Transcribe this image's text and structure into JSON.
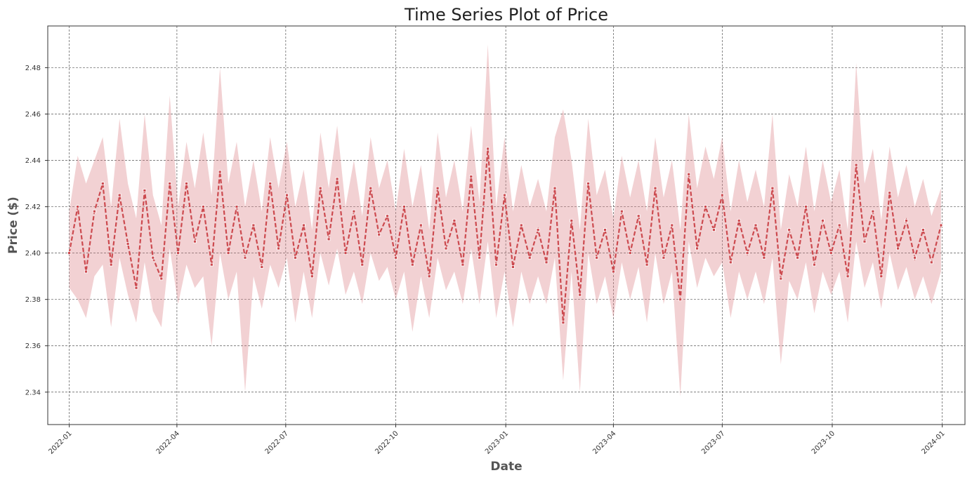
{
  "chart_data": {
    "type": "line",
    "title": "Time Series Plot of Price",
    "xlabel": "Date",
    "ylabel": "Price ($)",
    "x_range": [
      "2022-01-01",
      "2024-01-01"
    ],
    "ylim": [
      2.326,
      2.498
    ],
    "x_ticks": [
      "2022-01",
      "2022-04",
      "2022-07",
      "2022-10",
      "2023-01",
      "2023-04",
      "2023-07",
      "2023-10",
      "2024-01"
    ],
    "y_ticks": [
      "2.34",
      "2.36",
      "2.38",
      "2.40",
      "2.42",
      "2.44",
      "2.46",
      "2.48"
    ],
    "grid": true,
    "legend": "none",
    "colors": {
      "line": "#cc4a4f",
      "band": "#d97a80",
      "marker_edge": "#ffffff",
      "grid": "#555555"
    },
    "series": [
      {
        "values": [
          {
            "x": "2022-01-01",
            "y": 2.4
          },
          {
            "x": "2022-01-08",
            "y": 2.42
          },
          {
            "x": "2022-01-15",
            "y": 2.392
          },
          {
            "x": "2022-01-22",
            "y": 2.418
          },
          {
            "x": "2022-01-29",
            "y": 2.43
          },
          {
            "x": "2022-02-05",
            "y": 2.395
          },
          {
            "x": "2022-02-12",
            "y": 2.425
          },
          {
            "x": "2022-02-19",
            "y": 2.404
          },
          {
            "x": "2022-02-26",
            "y": 2.385
          },
          {
            "x": "2022-03-05",
            "y": 2.427
          },
          {
            "x": "2022-03-12",
            "y": 2.398
          },
          {
            "x": "2022-03-19",
            "y": 2.389
          },
          {
            "x": "2022-03-26",
            "y": 2.43
          },
          {
            "x": "2022-04-02",
            "y": 2.4
          },
          {
            "x": "2022-04-09",
            "y": 2.43
          },
          {
            "x": "2022-04-16",
            "y": 2.405
          },
          {
            "x": "2022-04-23",
            "y": 2.42
          },
          {
            "x": "2022-04-30",
            "y": 2.395
          },
          {
            "x": "2022-05-07",
            "y": 2.435
          },
          {
            "x": "2022-05-14",
            "y": 2.4
          },
          {
            "x": "2022-05-21",
            "y": 2.42
          },
          {
            "x": "2022-05-28",
            "y": 2.398
          },
          {
            "x": "2022-06-04",
            "y": 2.412
          },
          {
            "x": "2022-06-11",
            "y": 2.394
          },
          {
            "x": "2022-06-18",
            "y": 2.43
          },
          {
            "x": "2022-06-25",
            "y": 2.402
          },
          {
            "x": "2022-07-02",
            "y": 2.425
          },
          {
            "x": "2022-07-09",
            "y": 2.398
          },
          {
            "x": "2022-07-16",
            "y": 2.412
          },
          {
            "x": "2022-07-23",
            "y": 2.39
          },
          {
            "x": "2022-07-30",
            "y": 2.428
          },
          {
            "x": "2022-08-06",
            "y": 2.406
          },
          {
            "x": "2022-08-13",
            "y": 2.432
          },
          {
            "x": "2022-08-20",
            "y": 2.4
          },
          {
            "x": "2022-08-27",
            "y": 2.418
          },
          {
            "x": "2022-09-03",
            "y": 2.395
          },
          {
            "x": "2022-09-10",
            "y": 2.428
          },
          {
            "x": "2022-09-17",
            "y": 2.408
          },
          {
            "x": "2022-09-24",
            "y": 2.416
          },
          {
            "x": "2022-10-01",
            "y": 2.398
          },
          {
            "x": "2022-10-08",
            "y": 2.42
          },
          {
            "x": "2022-10-15",
            "y": 2.395
          },
          {
            "x": "2022-10-22",
            "y": 2.412
          },
          {
            "x": "2022-10-29",
            "y": 2.39
          },
          {
            "x": "2022-11-05",
            "y": 2.428
          },
          {
            "x": "2022-11-12",
            "y": 2.402
          },
          {
            "x": "2022-11-19",
            "y": 2.414
          },
          {
            "x": "2022-11-26",
            "y": 2.395
          },
          {
            "x": "2022-12-03",
            "y": 2.433
          },
          {
            "x": "2022-12-10",
            "y": 2.398
          },
          {
            "x": "2022-12-17",
            "y": 2.445
          },
          {
            "x": "2022-12-24",
            "y": 2.395
          },
          {
            "x": "2022-12-31",
            "y": 2.425
          },
          {
            "x": "2023-01-07",
            "y": 2.394
          },
          {
            "x": "2023-01-14",
            "y": 2.412
          },
          {
            "x": "2023-01-21",
            "y": 2.398
          },
          {
            "x": "2023-01-28",
            "y": 2.41
          },
          {
            "x": "2023-02-04",
            "y": 2.396
          },
          {
            "x": "2023-02-11",
            "y": 2.428
          },
          {
            "x": "2023-02-18",
            "y": 2.37
          },
          {
            "x": "2023-02-25",
            "y": 2.414
          },
          {
            "x": "2023-03-04",
            "y": 2.382
          },
          {
            "x": "2023-03-11",
            "y": 2.43
          },
          {
            "x": "2023-03-18",
            "y": 2.398
          },
          {
            "x": "2023-03-25",
            "y": 2.41
          },
          {
            "x": "2023-04-01",
            "y": 2.392
          },
          {
            "x": "2023-04-08",
            "y": 2.418
          },
          {
            "x": "2023-04-15",
            "y": 2.4
          },
          {
            "x": "2023-04-22",
            "y": 2.416
          },
          {
            "x": "2023-04-29",
            "y": 2.395
          },
          {
            "x": "2023-05-06",
            "y": 2.428
          },
          {
            "x": "2023-05-13",
            "y": 2.398
          },
          {
            "x": "2023-05-20",
            "y": 2.412
          },
          {
            "x": "2023-05-27",
            "y": 2.38
          },
          {
            "x": "2023-06-03",
            "y": 2.434
          },
          {
            "x": "2023-06-10",
            "y": 2.402
          },
          {
            "x": "2023-06-17",
            "y": 2.42
          },
          {
            "x": "2023-06-24",
            "y": 2.41
          },
          {
            "x": "2023-07-01",
            "y": 2.425
          },
          {
            "x": "2023-07-08",
            "y": 2.396
          },
          {
            "x": "2023-07-15",
            "y": 2.414
          },
          {
            "x": "2023-07-22",
            "y": 2.4
          },
          {
            "x": "2023-07-29",
            "y": 2.412
          },
          {
            "x": "2023-08-05",
            "y": 2.398
          },
          {
            "x": "2023-08-12",
            "y": 2.428
          },
          {
            "x": "2023-08-19",
            "y": 2.389
          },
          {
            "x": "2023-08-26",
            "y": 2.41
          },
          {
            "x": "2023-09-02",
            "y": 2.398
          },
          {
            "x": "2023-09-09",
            "y": 2.42
          },
          {
            "x": "2023-09-16",
            "y": 2.395
          },
          {
            "x": "2023-09-23",
            "y": 2.414
          },
          {
            "x": "2023-09-30",
            "y": 2.4
          },
          {
            "x": "2023-10-07",
            "y": 2.412
          },
          {
            "x": "2023-10-14",
            "y": 2.39
          },
          {
            "x": "2023-10-21",
            "y": 2.438
          },
          {
            "x": "2023-10-28",
            "y": 2.405
          },
          {
            "x": "2023-11-04",
            "y": 2.418
          },
          {
            "x": "2023-11-11",
            "y": 2.39
          },
          {
            "x": "2023-11-18",
            "y": 2.426
          },
          {
            "x": "2023-11-25",
            "y": 2.402
          },
          {
            "x": "2023-12-02",
            "y": 2.414
          },
          {
            "x": "2023-12-09",
            "y": 2.398
          },
          {
            "x": "2023-12-16",
            "y": 2.41
          },
          {
            "x": "2023-12-23",
            "y": 2.396
          },
          {
            "x": "2023-12-31",
            "y": 2.412
          }
        ],
        "band_low": [
          2.385,
          2.38,
          2.372,
          2.39,
          2.395,
          2.368,
          2.398,
          2.382,
          2.37,
          2.396,
          2.375,
          2.368,
          2.402,
          2.378,
          2.395,
          2.385,
          2.39,
          2.36,
          2.4,
          2.38,
          2.392,
          2.34,
          2.39,
          2.376,
          2.395,
          2.385,
          2.398,
          2.37,
          2.392,
          2.372,
          2.4,
          2.386,
          2.402,
          2.382,
          2.392,
          2.378,
          2.4,
          2.388,
          2.394,
          2.38,
          2.392,
          2.366,
          2.39,
          2.372,
          2.398,
          2.384,
          2.392,
          2.378,
          2.402,
          2.378,
          2.405,
          2.372,
          2.392,
          2.368,
          2.392,
          2.378,
          2.39,
          2.378,
          2.398,
          2.345,
          2.392,
          2.34,
          2.4,
          2.378,
          2.39,
          2.372,
          2.396,
          2.38,
          2.394,
          2.37,
          2.4,
          2.378,
          2.392,
          2.338,
          2.405,
          2.385,
          2.398,
          2.39,
          2.396,
          2.372,
          2.392,
          2.38,
          2.392,
          2.378,
          2.398,
          2.352,
          2.388,
          2.38,
          2.396,
          2.374,
          2.392,
          2.382,
          2.392,
          2.37,
          2.405,
          2.385,
          2.396,
          2.376,
          2.4,
          2.384,
          2.394,
          2.38,
          2.39,
          2.378,
          2.392
        ],
        "band_high": [
          2.418,
          2.442,
          2.43,
          2.44,
          2.45,
          2.42,
          2.458,
          2.43,
          2.415,
          2.46,
          2.425,
          2.412,
          2.468,
          2.42,
          2.448,
          2.428,
          2.452,
          2.425,
          2.48,
          2.43,
          2.448,
          2.42,
          2.44,
          2.418,
          2.45,
          2.428,
          2.448,
          2.42,
          2.436,
          2.41,
          2.452,
          2.428,
          2.455,
          2.42,
          2.44,
          2.416,
          2.45,
          2.428,
          2.44,
          2.418,
          2.445,
          2.42,
          2.438,
          2.41,
          2.452,
          2.424,
          2.44,
          2.418,
          2.455,
          2.422,
          2.49,
          2.42,
          2.45,
          2.418,
          2.438,
          2.42,
          2.432,
          2.418,
          2.45,
          2.462,
          2.44,
          2.41,
          2.458,
          2.425,
          2.436,
          2.415,
          2.442,
          2.424,
          2.44,
          2.418,
          2.45,
          2.424,
          2.44,
          2.41,
          2.46,
          2.428,
          2.446,
          2.432,
          2.45,
          2.418,
          2.44,
          2.422,
          2.436,
          2.42,
          2.46,
          2.41,
          2.434,
          2.42,
          2.446,
          2.418,
          2.44,
          2.422,
          2.436,
          2.41,
          2.482,
          2.43,
          2.445,
          2.414,
          2.446,
          2.424,
          2.438,
          2.42,
          2.432,
          2.416,
          2.428
        ]
      }
    ]
  }
}
